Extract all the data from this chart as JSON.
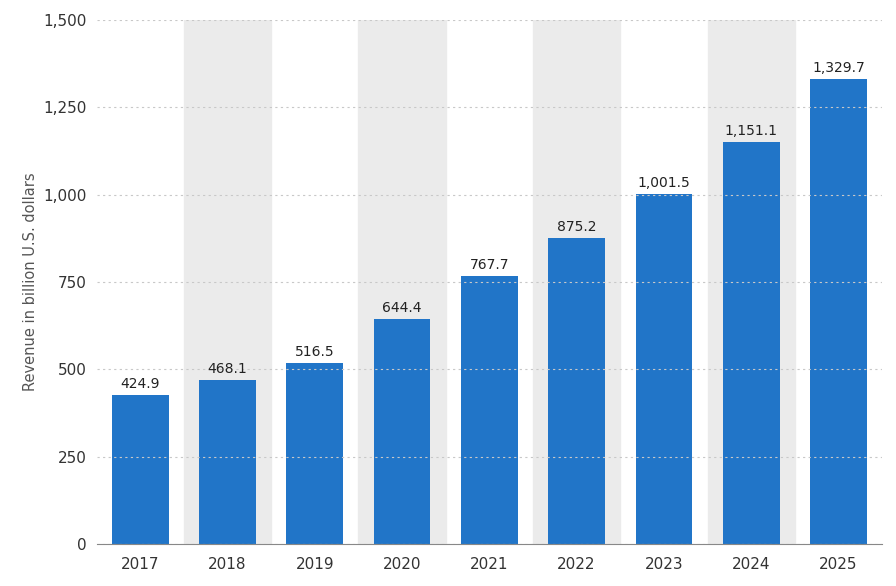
{
  "years": [
    "2017",
    "2018",
    "2019",
    "2020",
    "2021",
    "2022",
    "2023",
    "2024",
    "2025"
  ],
  "values": [
    424.9,
    468.1,
    516.5,
    644.4,
    767.7,
    875.2,
    1001.5,
    1151.1,
    1329.7
  ],
  "bar_color": "#2175c8",
  "background_color": "#ffffff",
  "plot_background_color": "#ffffff",
  "alt_band_color": "#ebebeb",
  "alt_band_indices": [
    1,
    3,
    5,
    7
  ],
  "ylabel": "Revenue in billion U.S. dollars",
  "ylim": [
    0,
    1500
  ],
  "yticks": [
    0,
    250,
    500,
    750,
    1000,
    1250,
    1500
  ],
  "grid_color": "#c8c8c8",
  "tick_fontsize": 11,
  "ylabel_fontsize": 10.5,
  "bar_label_fontsize": 10,
  "bar_label_color": "#222222",
  "bar_width": 0.65
}
